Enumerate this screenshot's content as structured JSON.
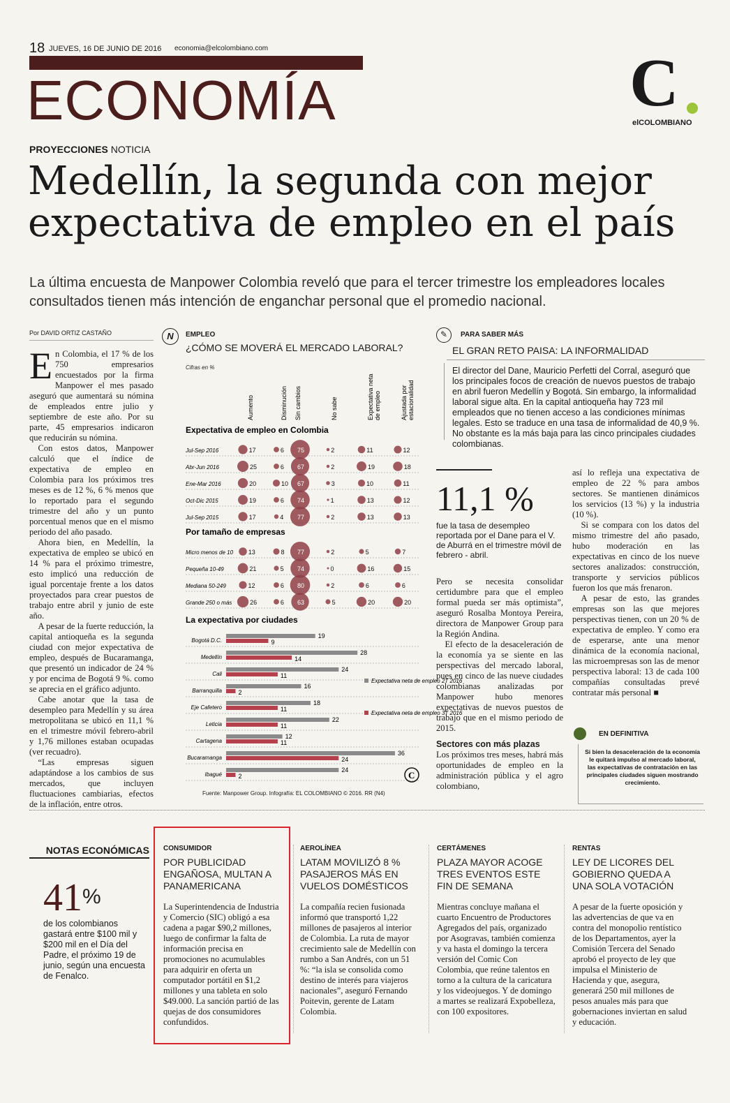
{
  "header": {
    "page_number": "18",
    "date": "JUEVES, 16 DE JUNIO DE 2016",
    "email": "economia@elcolombiano.com",
    "section": "ECONOMÍA",
    "logo_letter": "C",
    "logo_text": "elCOLOMBIANO"
  },
  "article": {
    "kicker_bold": "PROYECCIONES",
    "kicker_rest": " NOTICIA",
    "headline": "Medellín, la segunda con mejor expectativa de empleo en el país",
    "deck": "La última encuesta de Manpower Colombia reveló que para el tercer trimestre los empleadores locales consultados tienen más intención de enganchar personal que el promedio nacional.",
    "byline": "Por DAVID ORTIZ CASTAÑO",
    "dropcap": "E",
    "col1": [
      "n Colombia, el 17 % de los 750 empresarios encuestados por la firma Manpower el mes pasado aseguró que aumentará su nómina de empleados entre julio y septiembre de este año. Por su parte, 45 empresarios indicaron que reducirán su nómina.",
      "Con estos datos, Manpower calculó que el índice de expectativa de empleo en Colombia para los próximos tres meses es de 12 %, 6 % menos que lo reportado para el segundo trimestre del año y un punto porcentual menos que en el mismo periodo del año pasado.",
      "Ahora bien, en Medellín, la expectativa de empleo se ubicó en 14 % para el próximo trimestre, esto implicó una reducción de igual porcentaje frente a los datos proyectados para crear puestos de trabajo entre abril y junio de este año.",
      "A pesar de la fuerte reducción, la capital antioqueña es la segunda ciudad con mejor expectativa de empleo, después de Bucaramanga, que presentó un indicador de 24 % y por encima de Bogotá 9 %. como se aprecia en el gráfico adjunto.",
      "Cabe anotar que la tasa de desempleo para Medellín y su área metropolitana se ubicó en 11,1 % en el trimestre móvil febrero-abril y 1,76 millones estaban ocupadas (ver recuadro).",
      "“Las empresas siguen adaptándose a los cambios de sus mercados, que incluyen fluctuaciones cambiarias, efectos de la inflación, entre otros."
    ],
    "col2": [
      "Pero se necesita consolidar certidumbre para que el empleo formal pueda ser más optimista”, aseguró Rosalba Montoya Pereira, directora de Manpower Group para la Región Andina.",
      "El efecto de la desaceleración de la economía ya se siente en las perspectivas del mercado laboral, pues en cinco de las nueve ciudades colombianas analizadas por Manpower hubo menores expectativas de nuevos puestos de trabajo que en el mismo periodo de 2015."
    ],
    "subhead2": "Sectores con más plazas",
    "col2b": "Los próximos tres meses, habrá más oportunidades de empleo en la administración pública y el agro colombiano,",
    "col3": [
      "así lo refleja una expectativa de empleo de 22 % para ambos sectores. Se mantienen dinámicos los servicios (13 %) y la industria (10 %).",
      "Si se compara con los datos del mismo trimestre del año pasado, hubo moderación en las expectativas en cinco de los nueve sectores analizados: construcción, transporte y servicios públicos fueron los que más frenaron.",
      "A pesar de esto, las grandes empresas son las que mejores perspectivas tienen, con un 20 % de expectativa de empleo. Y como era de esperarse, ante una menor dinámica de la economía nacional, las microempresas son las de menor perspectiva laboral: 13 de cada 100 compañías consultadas prevé contratar más personal ■"
    ]
  },
  "infographic": {
    "icon": "N",
    "label": "EMPLEO",
    "title": "¿CÓMO SE MOVERÁ EL MERCADO LABORAL?",
    "units": "Cifras en %",
    "columns": [
      "Aumento",
      "Disminución",
      "Sin cambios",
      "No sabe",
      "Expectativa neta de empleo",
      "Ajustada por estacionalidad"
    ],
    "section1_title": "Expectativa de empleo en Colombia",
    "section2_title": "Por tamaño de empresas",
    "section3_title": "La expectativa por ciudades",
    "source": "Fuente: Manpower Group. Infografía: EL COLOMBIANO © 2016. RR (N4)",
    "legend_2t": "Expectativa neta de empleo 2T 2016",
    "legend_3t": "Expectativa neta de empleo 3T 2016"
  },
  "chart_data": [
    {
      "type": "table",
      "title": "Expectativa de empleo en Colombia",
      "columns": [
        "Aumento",
        "Disminución",
        "Sin cambios",
        "No sabe",
        "Expectativa neta de empleo",
        "Ajustada por estacionalidad"
      ],
      "rows": [
        {
          "label": "Jul-Sep 2016",
          "values": [
            17,
            6,
            75,
            2,
            11,
            12
          ]
        },
        {
          "label": "Abr-Jun 2016",
          "values": [
            25,
            6,
            67,
            2,
            19,
            18
          ]
        },
        {
          "label": "Ene-Mar 2016",
          "values": [
            20,
            10,
            67,
            3,
            10,
            11
          ]
        },
        {
          "label": "Oct-Dic 2015",
          "values": [
            19,
            6,
            74,
            1,
            13,
            12
          ]
        },
        {
          "label": "Jul-Sep 2015",
          "values": [
            17,
            4,
            77,
            2,
            13,
            13
          ]
        }
      ]
    },
    {
      "type": "table",
      "title": "Por tamaño de empresas",
      "columns": [
        "Aumento",
        "Disminución",
        "Sin cambios",
        "No sabe",
        "Expectativa neta de empleo",
        "Ajustada por estacionalidad"
      ],
      "rows": [
        {
          "label": "Micro menos de 10",
          "values": [
            13,
            8,
            77,
            2,
            5,
            7
          ]
        },
        {
          "label": "Pequeña 10-49",
          "values": [
            21,
            5,
            74,
            0,
            16,
            15
          ]
        },
        {
          "label": "Mediana 50-249",
          "values": [
            12,
            6,
            80,
            2,
            6,
            6
          ]
        },
        {
          "label": "Grande 250 o más",
          "values": [
            26,
            6,
            63,
            5,
            20,
            20
          ]
        }
      ]
    },
    {
      "type": "bar",
      "title": "La expectativa por ciudades",
      "categories": [
        "Bogotá D.C.",
        "Medellín",
        "Cali",
        "Barranquilla",
        "Eje Cafetero",
        "Leticia",
        "Cartagena",
        "Bucaramanga",
        "Ibagué"
      ],
      "series": [
        {
          "name": "Expectativa neta de empleo 2T 2016",
          "values": [
            19,
            28,
            24,
            16,
            18,
            22,
            12,
            36,
            24
          ],
          "color": "#8a8a8a"
        },
        {
          "name": "Expectativa neta de empleo 3T 2016",
          "values": [
            9,
            14,
            11,
            2,
            11,
            11,
            11,
            24,
            2
          ],
          "color": "#b5414f"
        }
      ],
      "xlim": [
        0,
        36
      ]
    }
  ],
  "sidebar": {
    "label": "PARA SABER MÁS",
    "title": "EL GRAN RETO PAISA: LA INFORMALIDAD",
    "text": "El director del Dane, Mauricio Perfetti del Corral, aseguró que los principales focos de creación de nuevos puestos de trabajo en abril fueron Medellín y Bogotá. Sin embargo, la informalidad laboral sigue alta. En la capital antioqueña hay 723 mil empleados que no tienen acceso a las condiciones mínimas legales. Esto se traduce en una tasa de informalidad de 40,9 %. No obstante es la más baja para las cinco principales ciudades colombianas.",
    "big_stat": "11,1 %",
    "stat_desc": "fue la tasa de desempleo reportada por el Dane para el V. de Aburrá en el trimestre móvil de febrero - abril.",
    "definitiva_label": "EN DEFINITIVA",
    "definitiva_text": "Si bien la desaceleración de la economía le quitará impulso al mercado laboral, las expectativas de contratación en las principales ciudades siguen mostrando crecimiento."
  },
  "notas": {
    "header": "NOTAS ECONÓMICAS",
    "big_number": "41",
    "big_unit": "%",
    "text": "de los colombianos gastará entre $100 mil y $200 mil en el Día del Padre, el próximo 19 de junio, según una encuesta de Fenalco.",
    "items": [
      {
        "category": "CONSUMIDOR",
        "title": "POR PUBLICIDAD ENGAÑOSA, MULTAN A PANAMERICANA",
        "text": "La Superintendencia de Industria y Comercio (SIC) obligó a esa cadena a pagar $90,2 millones, luego de confirmar la falta de información precisa en promociones no acumulables para adquirir en oferta un computador portátil en $1,2 millones y una tableta en solo $49.000. La sanción partió de las quejas de dos consumidores confundidos."
      },
      {
        "category": "AEROLÍNEA",
        "title": "LATAM MOVILIZÓ 8 % PASAJEROS MÁS EN VUELOS DOMÉSTICOS",
        "text": "La compañía recien fusionada informó que transportó 1,22 millones de pasajeros al interior de Colombia. La ruta de mayor crecimiento sale de Medellín con rumbo a San Andrés, con un 51 %: “la isla se consolida como destino de interés para viajeros nacionales”, aseguró Fernando Poitevin, gerente de Latam Colombia."
      },
      {
        "category": "CERTÁMENES",
        "title": "PLAZA MAYOR ACOGE TRES EVENTOS ESTE FIN DE SEMANA",
        "text": "Mientras concluye mañana el cuarto Encuentro de Productores Agregados del país, organizado por Asogravas, también comienza y va hasta el domingo la tercera versión del Comic Con Colombia, que reúne talentos en torno a la cultura de la caricatura y los videojuegos. Y de domingo a martes se realizará Expobelleza, con 100 expositores."
      },
      {
        "category": "RENTAS",
        "title": "LEY DE LICORES DEL GOBIERNO QUEDA A UNA SOLA VOTACIÓN",
        "text": "A pesar de la fuerte oposición y las advertencias de que va en contra del monopolio rentístico de los Departamentos, ayer la Comisión Tercera del Senado aprobó el proyecto de ley que impulsa el Ministerio de Hacienda y que, asegura, generará 250 mil millones de pesos anuales más para que gobernaciones inviertan en salud y educación."
      }
    ]
  },
  "colors": {
    "brand": "#4b1d1d",
    "bubble": "#8f3e47",
    "highlight_box": "#d9262b"
  }
}
